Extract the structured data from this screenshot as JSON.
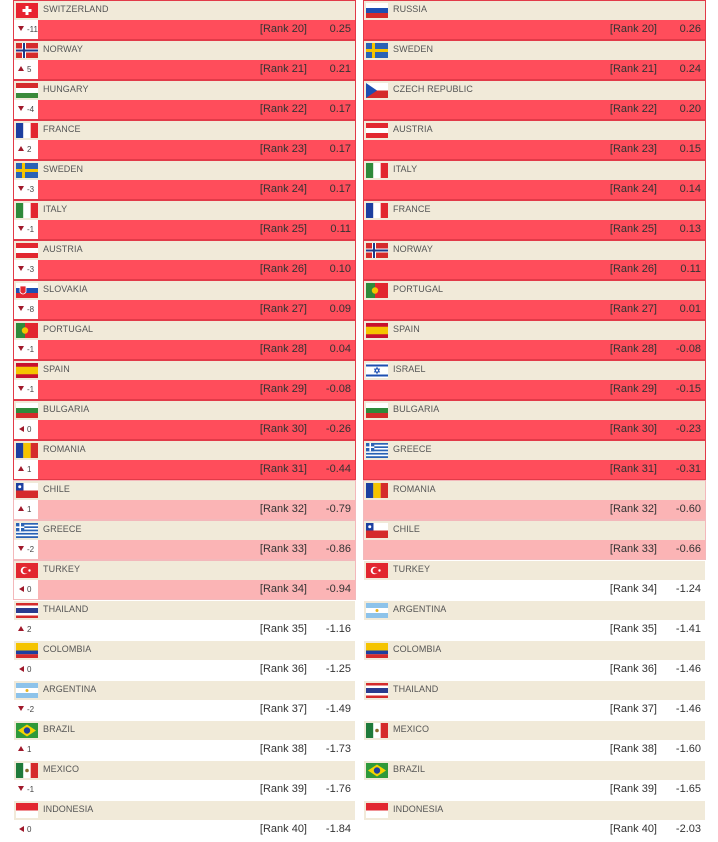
{
  "left": [
    {
      "name": "SWITZERLAND",
      "flag": "switzerland",
      "change": "-11",
      "dir": "down",
      "rank": "[Rank 20]",
      "score": "0.25",
      "style": "red"
    },
    {
      "name": "NORWAY",
      "flag": "norway",
      "change": "5",
      "dir": "up",
      "rank": "[Rank 21]",
      "score": "0.21",
      "style": "red"
    },
    {
      "name": "HUNGARY",
      "flag": "hungary",
      "change": "-4",
      "dir": "down",
      "rank": "[Rank 22]",
      "score": "0.17",
      "style": "red"
    },
    {
      "name": "FRANCE",
      "flag": "france",
      "change": "2",
      "dir": "up",
      "rank": "[Rank 23]",
      "score": "0.17",
      "style": "red"
    },
    {
      "name": "SWEDEN",
      "flag": "sweden",
      "change": "-3",
      "dir": "down",
      "rank": "[Rank 24]",
      "score": "0.17",
      "style": "red"
    },
    {
      "name": "ITALY",
      "flag": "italy",
      "change": "-1",
      "dir": "down",
      "rank": "[Rank 25]",
      "score": "0.11",
      "style": "red"
    },
    {
      "name": "AUSTRIA",
      "flag": "austria",
      "change": "-3",
      "dir": "down",
      "rank": "[Rank 26]",
      "score": "0.10",
      "style": "red"
    },
    {
      "name": "SLOVAKIA",
      "flag": "slovakia",
      "change": "-8",
      "dir": "down",
      "rank": "[Rank 27]",
      "score": "0.09",
      "style": "red"
    },
    {
      "name": "PORTUGAL",
      "flag": "portugal",
      "change": "-1",
      "dir": "down",
      "rank": "[Rank 28]",
      "score": "0.04",
      "style": "red"
    },
    {
      "name": "SPAIN",
      "flag": "spain",
      "change": "-1",
      "dir": "down",
      "rank": "[Rank 29]",
      "score": "-0.08",
      "style": "red"
    },
    {
      "name": "BULGARIA",
      "flag": "bulgaria",
      "change": "0",
      "dir": "same",
      "rank": "[Rank 30]",
      "score": "-0.26",
      "style": "red"
    },
    {
      "name": "ROMANIA",
      "flag": "romania",
      "change": "1",
      "dir": "up",
      "rank": "[Rank 31]",
      "score": "-0.44",
      "style": "red"
    },
    {
      "name": "CHILE",
      "flag": "chile",
      "change": "1",
      "dir": "up",
      "rank": "[Rank 32]",
      "score": "-0.79",
      "style": "pink"
    },
    {
      "name": "GREECE",
      "flag": "greece",
      "change": "-2",
      "dir": "down",
      "rank": "[Rank 33]",
      "score": "-0.86",
      "style": "pink"
    },
    {
      "name": "TURKEY",
      "flag": "turkey",
      "change": "0",
      "dir": "same",
      "rank": "[Rank 34]",
      "score": "-0.94",
      "style": "pink"
    },
    {
      "name": "THAILAND",
      "flag": "thailand",
      "change": "2",
      "dir": "up",
      "rank": "[Rank 35]",
      "score": "-1.16",
      "style": "white"
    },
    {
      "name": "COLOMBIA",
      "flag": "colombia",
      "change": "0",
      "dir": "same",
      "rank": "[Rank 36]",
      "score": "-1.25",
      "style": "white"
    },
    {
      "name": "ARGENTINA",
      "flag": "argentina",
      "change": "-2",
      "dir": "down",
      "rank": "[Rank 37]",
      "score": "-1.49",
      "style": "white"
    },
    {
      "name": "BRAZIL",
      "flag": "brazil",
      "change": "1",
      "dir": "up",
      "rank": "[Rank 38]",
      "score": "-1.73",
      "style": "white"
    },
    {
      "name": "MEXICO",
      "flag": "mexico",
      "change": "-1",
      "dir": "down",
      "rank": "[Rank 39]",
      "score": "-1.76",
      "style": "white"
    },
    {
      "name": "INDONESIA",
      "flag": "indonesia",
      "change": "0",
      "dir": "same",
      "rank": "[Rank 40]",
      "score": "-1.84",
      "style": "white"
    }
  ],
  "right": [
    {
      "name": "RUSSIA",
      "flag": "russia",
      "rank": "[Rank 20]",
      "score": "0.26",
      "style": "red"
    },
    {
      "name": "SWEDEN",
      "flag": "sweden",
      "rank": "[Rank 21]",
      "score": "0.24",
      "style": "red"
    },
    {
      "name": "CZECH REPUBLIC",
      "flag": "czech",
      "rank": "[Rank 22]",
      "score": "0.20",
      "style": "red"
    },
    {
      "name": "AUSTRIA",
      "flag": "austria",
      "rank": "[Rank 23]",
      "score": "0.15",
      "style": "red"
    },
    {
      "name": "ITALY",
      "flag": "italy",
      "rank": "[Rank 24]",
      "score": "0.14",
      "style": "red"
    },
    {
      "name": "FRANCE",
      "flag": "france",
      "rank": "[Rank 25]",
      "score": "0.13",
      "style": "red"
    },
    {
      "name": "NORWAY",
      "flag": "norway",
      "rank": "[Rank 26]",
      "score": "0.11",
      "style": "red"
    },
    {
      "name": "PORTUGAL",
      "flag": "portugal",
      "rank": "[Rank 27]",
      "score": "0.01",
      "style": "red"
    },
    {
      "name": "SPAIN",
      "flag": "spain",
      "rank": "[Rank 28]",
      "score": "-0.08",
      "style": "red"
    },
    {
      "name": "ISRAEL",
      "flag": "israel",
      "rank": "[Rank 29]",
      "score": "-0.15",
      "style": "red"
    },
    {
      "name": "BULGARIA",
      "flag": "bulgaria",
      "rank": "[Rank 30]",
      "score": "-0.23",
      "style": "red"
    },
    {
      "name": "GREECE",
      "flag": "greece",
      "rank": "[Rank 31]",
      "score": "-0.31",
      "style": "red"
    },
    {
      "name": "ROMANIA",
      "flag": "romania",
      "rank": "[Rank 32]",
      "score": "-0.60",
      "style": "pink"
    },
    {
      "name": "CHILE",
      "flag": "chile",
      "rank": "[Rank 33]",
      "score": "-0.66",
      "style": "pink"
    },
    {
      "name": "TURKEY",
      "flag": "turkey",
      "rank": "[Rank 34]",
      "score": "-1.24",
      "style": "white"
    },
    {
      "name": "ARGENTINA",
      "flag": "argentina",
      "rank": "[Rank 35]",
      "score": "-1.41",
      "style": "white"
    },
    {
      "name": "COLOMBIA",
      "flag": "colombia",
      "rank": "[Rank 36]",
      "score": "-1.46",
      "style": "white"
    },
    {
      "name": "THAILAND",
      "flag": "thailand",
      "rank": "[Rank 37]",
      "score": "-1.46",
      "style": "white"
    },
    {
      "name": "MEXICO",
      "flag": "mexico",
      "rank": "[Rank 38]",
      "score": "-1.60",
      "style": "white"
    },
    {
      "name": "BRAZIL",
      "flag": "brazil",
      "rank": "[Rank 39]",
      "score": "-1.65",
      "style": "white"
    },
    {
      "name": "INDONESIA",
      "flag": "indonesia",
      "rank": "[Rank 40]",
      "score": "-2.03",
      "style": "white"
    }
  ]
}
